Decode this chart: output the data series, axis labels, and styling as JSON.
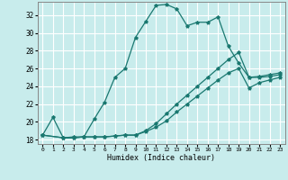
{
  "xlabel": "Humidex (Indice chaleur)",
  "bg_color": "#c8ecec",
  "grid_color": "#ffffff",
  "line_color": "#1a7870",
  "xlim_min": -0.5,
  "xlim_max": 23.5,
  "ylim_min": 17.5,
  "ylim_max": 33.5,
  "xticks": [
    0,
    1,
    2,
    3,
    4,
    5,
    6,
    7,
    8,
    9,
    10,
    11,
    12,
    13,
    14,
    15,
    16,
    17,
    18,
    19,
    20,
    21,
    22,
    23
  ],
  "yticks": [
    18,
    20,
    22,
    24,
    26,
    28,
    30,
    32
  ],
  "line1_x": [
    0,
    1,
    2,
    3,
    4,
    5,
    6,
    7,
    8,
    9,
    10,
    11,
    12,
    13,
    14,
    15,
    16,
    17,
    18,
    19,
    20,
    21,
    22,
    23
  ],
  "line1_y": [
    18.5,
    20.5,
    18.2,
    18.3,
    18.3,
    20.3,
    22.2,
    25.0,
    26.0,
    29.5,
    31.3,
    33.1,
    33.2,
    32.7,
    30.8,
    31.2,
    31.2,
    31.8,
    28.5,
    26.6,
    25.0,
    25.0,
    25.1,
    25.3
  ],
  "line2_x": [
    0,
    2,
    3,
    4,
    5,
    6,
    7,
    8,
    9,
    10,
    11,
    12,
    13,
    14,
    15,
    16,
    17,
    18,
    19,
    20,
    21,
    22,
    23
  ],
  "line2_y": [
    18.5,
    18.2,
    18.2,
    18.3,
    18.3,
    18.3,
    18.4,
    18.5,
    18.5,
    19.0,
    19.8,
    20.9,
    22.0,
    23.0,
    24.0,
    25.0,
    26.0,
    27.0,
    27.8,
    25.0,
    25.1,
    25.3,
    25.5
  ],
  "line3_x": [
    0,
    2,
    3,
    4,
    5,
    6,
    7,
    8,
    9,
    10,
    11,
    12,
    13,
    14,
    15,
    16,
    17,
    18,
    19,
    20,
    21,
    22,
    23
  ],
  "line3_y": [
    18.5,
    18.2,
    18.2,
    18.3,
    18.3,
    18.3,
    18.4,
    18.5,
    18.5,
    18.9,
    19.4,
    20.1,
    21.1,
    22.0,
    22.9,
    23.8,
    24.7,
    25.5,
    26.0,
    23.8,
    24.4,
    24.7,
    25.0
  ]
}
